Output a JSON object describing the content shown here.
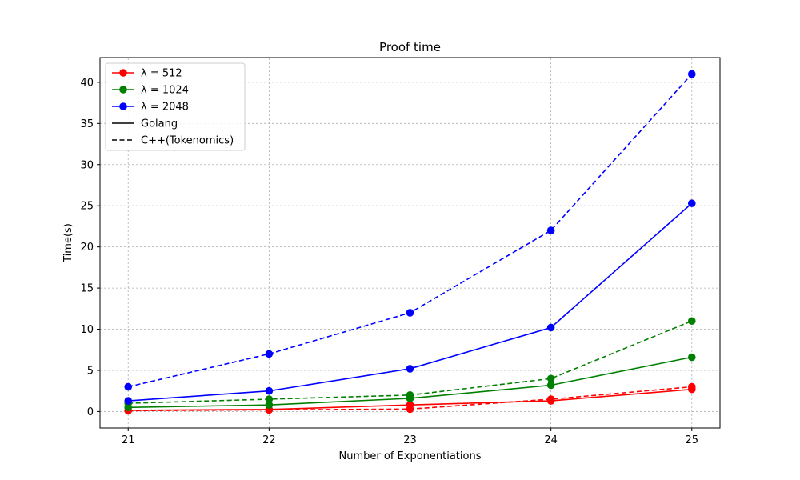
{
  "chart_data": {
    "type": "line",
    "title": "Proof time",
    "xlabel": "Number of Exponentiations",
    "ylabel": "Time(s)",
    "x": [
      21,
      22,
      23,
      24,
      25
    ],
    "xlim": [
      20.8,
      25.2
    ],
    "ylim": [
      -2.0,
      43.0
    ],
    "xticks": [
      21,
      22,
      23,
      24,
      25
    ],
    "yticks": [
      0,
      5,
      10,
      15,
      20,
      25,
      30,
      35,
      40
    ],
    "grid": true,
    "legend_position": "top-left",
    "series": [
      {
        "name": "λ = 512",
        "implementation": "Golang",
        "color": "#ff0000",
        "dash": "solid",
        "values": [
          0.15,
          0.25,
          0.8,
          1.3,
          2.7
        ]
      },
      {
        "name": "λ = 512",
        "implementation": "C++(Tokenomics)",
        "color": "#ff0000",
        "dash": "dashed",
        "values": [
          0.1,
          0.2,
          0.3,
          1.5,
          3.0
        ]
      },
      {
        "name": "λ = 1024",
        "implementation": "Golang",
        "color": "#008000",
        "dash": "solid",
        "values": [
          0.5,
          0.8,
          1.6,
          3.2,
          6.6
        ]
      },
      {
        "name": "λ = 1024",
        "implementation": "C++(Tokenomics)",
        "color": "#008000",
        "dash": "dashed",
        "values": [
          1.0,
          1.5,
          2.0,
          4.0,
          11.0
        ]
      },
      {
        "name": "λ = 2048",
        "implementation": "Golang",
        "color": "#0000ff",
        "dash": "solid",
        "values": [
          1.3,
          2.5,
          5.2,
          10.2,
          25.3
        ]
      },
      {
        "name": "λ = 2048",
        "implementation": "C++(Tokenomics)",
        "color": "#0000ff",
        "dash": "dashed",
        "values": [
          3.0,
          7.0,
          12.0,
          22.0,
          41.0
        ]
      }
    ],
    "legend": [
      {
        "label": "λ = 512",
        "color": "#ff0000",
        "marker": true,
        "dash": "solid"
      },
      {
        "label": "λ = 1024",
        "color": "#008000",
        "marker": true,
        "dash": "solid"
      },
      {
        "label": "λ = 2048",
        "color": "#0000ff",
        "marker": true,
        "dash": "solid"
      },
      {
        "label": "Golang",
        "color": "#000000",
        "marker": false,
        "dash": "solid"
      },
      {
        "label": "C++(Tokenomics)",
        "color": "#000000",
        "marker": false,
        "dash": "dashed"
      }
    ]
  }
}
